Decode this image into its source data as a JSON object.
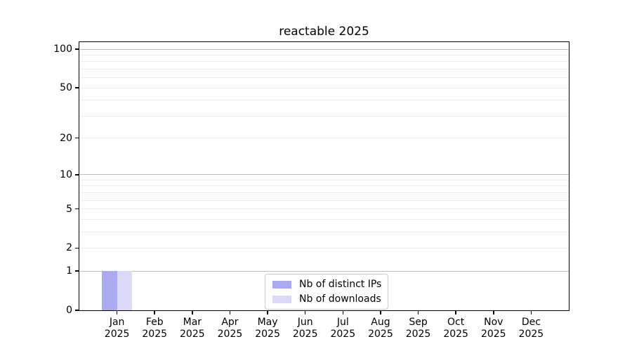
{
  "chart_data": {
    "type": "bar",
    "title": "reactable 2025",
    "xlabel": "",
    "ylabel": "",
    "categories": [
      "Jan 2025",
      "Feb 2025",
      "Mar 2025",
      "Apr 2025",
      "May 2025",
      "Jun 2025",
      "Jul 2025",
      "Aug 2025",
      "Sep 2025",
      "Oct 2025",
      "Nov 2025",
      "Dec 2025"
    ],
    "series": [
      {
        "name": "Nb of distinct IPs",
        "color": "#aaaaf0",
        "values": [
          1,
          0,
          0,
          0,
          0,
          0,
          0,
          0,
          0,
          0,
          0,
          0
        ]
      },
      {
        "name": "Nb of downloads",
        "color": "#dadaf8",
        "values": [
          1,
          0,
          0,
          0,
          0,
          0,
          0,
          0,
          0,
          0,
          0,
          0
        ]
      }
    ],
    "y_axis": {
      "scale": "log1p",
      "tick_values": [
        0,
        1,
        2,
        5,
        10,
        20,
        50,
        100
      ],
      "tick_labels": [
        "0",
        "1",
        "2",
        "5",
        "10",
        "20",
        "50",
        "100"
      ],
      "major_gridlines": [
        1,
        10,
        100
      ],
      "minor_gridlines": [
        2,
        3,
        4,
        5,
        6,
        7,
        8,
        9,
        20,
        30,
        40,
        50,
        60,
        70,
        80,
        90
      ],
      "ylim": [
        0,
        113.5
      ]
    },
    "legend": {
      "position": "lower center",
      "entries": [
        "Nb of distinct IPs",
        "Nb of downloads"
      ]
    },
    "grid": true,
    "colors": {
      "major_grid": "#bcbcbc",
      "minor_grid": "#ececec",
      "spine": "#000000",
      "text": "#000000",
      "legend_border": "#cccccc",
      "background": "#ffffff"
    }
  }
}
